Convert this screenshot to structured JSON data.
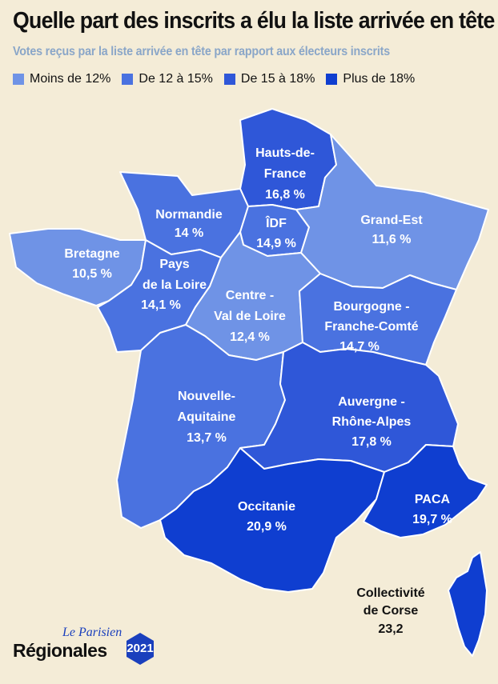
{
  "title": "Quelle part des inscrits a élu la liste arrivée en tête",
  "subtitle": "Votes reçus par la liste arrivée en tête par rapport aux électeurs inscrits",
  "legend": [
    {
      "label": "Moins de 12%",
      "color": "#6f93e6"
    },
    {
      "label": "De 12 à 15%",
      "color": "#4a72e0"
    },
    {
      "label": "De 15 à 18%",
      "color": "#2f57d8"
    },
    {
      "label": "Plus de 18%",
      "color": "#0f3ed0"
    }
  ],
  "regions": {
    "hauts_de_france": {
      "name_1": "Hauts-de-",
      "name_2": "France",
      "value": "16,8 %"
    },
    "normandie": {
      "name": "Normandie",
      "value": "14 %"
    },
    "idf": {
      "name": "ÎDF",
      "value": "14,9 %"
    },
    "grand_est": {
      "name": "Grand-Est",
      "value": "11,6 %"
    },
    "bretagne": {
      "name": "Bretagne",
      "value": "10,5 %"
    },
    "pays_de_la_loire": {
      "name_1": "Pays",
      "name_2": "de la Loire",
      "value": "14,1 %"
    },
    "centre_val_de_loire": {
      "name_1": "Centre -",
      "name_2": "Val de Loire",
      "value": "12,4 %"
    },
    "bourgogne_franche_comte": {
      "name_1": "Bourgogne -",
      "name_2": "Franche-Comté",
      "value": "14,7 %"
    },
    "nouvelle_aquitaine": {
      "name_1": "Nouvelle-",
      "name_2": "Aquitaine",
      "value": "13,7 %"
    },
    "auvergne_rhone_alpes": {
      "name_1": "Auvergne -",
      "name_2": "Rhône-Alpes",
      "value": "17,8 %"
    },
    "occitanie": {
      "name": "Occitanie",
      "value": "20,9 %"
    },
    "paca": {
      "name": "PACA",
      "value": "19,7 %"
    },
    "corse": {
      "name_1": "Collectivité",
      "name_2": "de Corse",
      "value": "23,2"
    }
  },
  "branding": {
    "publisher": "Le Parisien",
    "section": "Régionales",
    "year": "2021"
  }
}
